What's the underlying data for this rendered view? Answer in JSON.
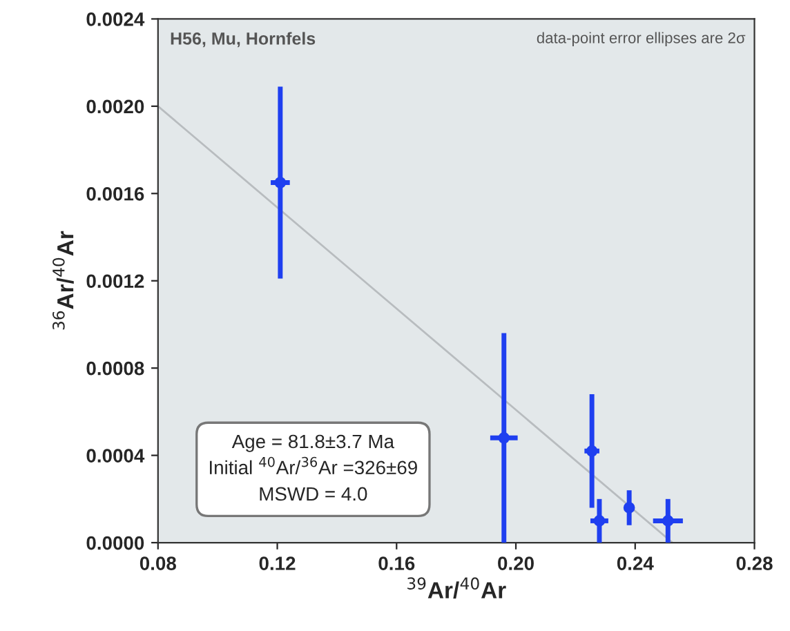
{
  "chart_data": {
    "type": "scatter",
    "xlabel": "$^{39}$Ar/$^{40}$Ar",
    "ylabel": "$^{36}$Ar/$^{40}$Ar",
    "xlim": [
      0.08,
      0.28
    ],
    "xticks": [
      {
        "value": 0.08,
        "label": "0.08"
      },
      {
        "value": 0.12,
        "label": "0.12"
      },
      {
        "value": 0.16,
        "label": "0.16"
      },
      {
        "value": 0.2,
        "label": "0.20"
      },
      {
        "value": 0.24,
        "label": "0.24"
      },
      {
        "value": 0.28,
        "label": "0.28"
      }
    ],
    "ylim": [
      0.0,
      0.0024
    ],
    "yticks": [
      {
        "value": 0.0,
        "label": "0.0000"
      },
      {
        "value": 0.0004,
        "label": "0.0004"
      },
      {
        "value": 0.0008,
        "label": "0.0008"
      },
      {
        "value": 0.0012,
        "label": "0.0012"
      },
      {
        "value": 0.0016,
        "label": "0.0016"
      },
      {
        "value": 0.002,
        "label": "0.0020"
      },
      {
        "value": 0.0024,
        "label": "0.0024"
      }
    ],
    "grid": false,
    "legend": false,
    "series": [
      {
        "color": "#1f3ff0",
        "x": [
          0.121,
          0.196,
          0.2255,
          0.228,
          0.238,
          0.251
        ],
        "values": [
          0.00165,
          0.00048,
          0.00042,
          0.0001,
          0.00016,
          0.0001
        ],
        "errors": [
          0.00044,
          0.00048,
          0.00026,
          0.0001,
          8e-05,
          0.0001
        ],
        "xerrors": [
          0.0032,
          0.0046,
          0.0025,
          0.003,
          0.0015,
          0.005
        ]
      },
      {
        "type": "line",
        "color": "#b8bcbf",
        "x": [
          0.08,
          0.2525
        ],
        "values": [
          0.002,
          0.0
        ]
      }
    ],
    "annotations": [
      "H56, Mu, Hornfels",
      "data-point error ellipses are 2σ",
      "Age = 81.8±3.7 Ma",
      "Initial $^{40}$Ar/$^{36}$Ar =326±69",
      "MSWD = 4.0"
    ]
  }
}
